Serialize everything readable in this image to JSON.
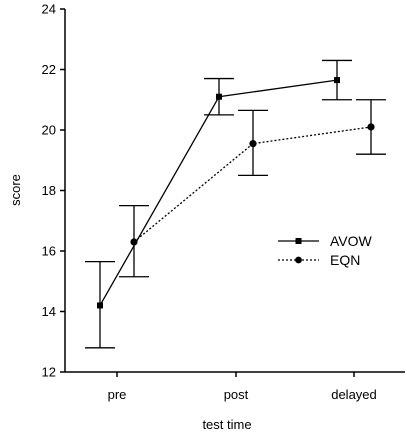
{
  "chart_data": {
    "type": "line",
    "xlabel": "test time",
    "ylabel": "score",
    "categories": [
      "pre",
      "post",
      "delayed"
    ],
    "ylim": [
      12,
      24
    ],
    "yticks": [
      12,
      14,
      16,
      18,
      20,
      22,
      24
    ],
    "grid": false,
    "legend_position": "center-right",
    "series": [
      {
        "name": "AVOW",
        "values": [
          14.2,
          21.1,
          21.65
        ],
        "error_low": [
          12.8,
          20.5,
          21.0
        ],
        "error_high": [
          15.65,
          21.7,
          22.3
        ],
        "marker": "square",
        "line_style": "solid",
        "color": "#000000"
      },
      {
        "name": "EQN",
        "values": [
          16.3,
          19.55,
          20.1
        ],
        "error_low": [
          15.15,
          18.5,
          19.2
        ],
        "error_high": [
          17.5,
          20.65,
          21.0
        ],
        "marker": "circle",
        "line_style": "dotted",
        "color": "#000000"
      }
    ]
  }
}
